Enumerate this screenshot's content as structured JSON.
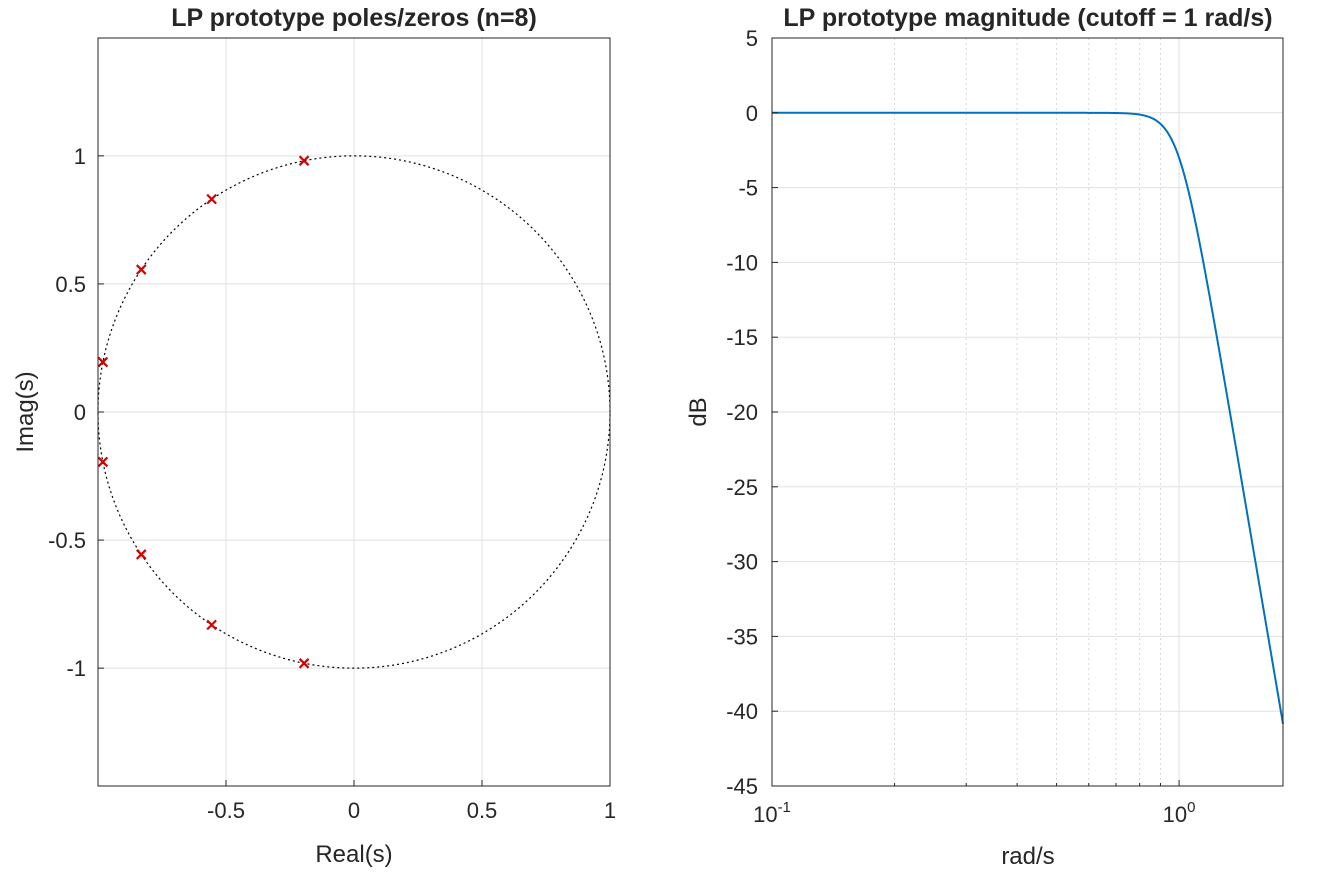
{
  "chart_data": [
    {
      "type": "scatter",
      "title": "LP prototype poles/zeros (n=8)",
      "xlabel": "Real(s)",
      "ylabel": "Imag(s)",
      "xlim": [
        -1,
        1
      ],
      "ylim": [
        -1.46,
        1.46
      ],
      "xticks": [
        -0.5,
        0,
        0.5,
        1
      ],
      "xtick_labels": [
        "-0.5",
        "0",
        "0.5",
        "1"
      ],
      "yticks": [
        -1,
        -0.5,
        0,
        0.5,
        1
      ],
      "ytick_labels": [
        "-1",
        "-0.5",
        "0",
        "0.5",
        "1"
      ],
      "grid": true,
      "unit_circle": true,
      "poles": [
        {
          "x": -0.195,
          "y": 0.981
        },
        {
          "x": -0.556,
          "y": 0.831
        },
        {
          "x": -0.831,
          "y": 0.556
        },
        {
          "x": -0.981,
          "y": 0.195
        },
        {
          "x": -0.981,
          "y": -0.195
        },
        {
          "x": -0.831,
          "y": -0.556
        },
        {
          "x": -0.556,
          "y": -0.831
        },
        {
          "x": -0.195,
          "y": -0.981
        }
      ],
      "marker": "x",
      "marker_color": "#d40000",
      "circle_color": "#000000"
    },
    {
      "type": "line",
      "title": "LP prototype magnitude (cutoff = 1 rad/s)",
      "xlabel": "rad/s",
      "ylabel": "dB",
      "xscale": "log",
      "xlim": [
        0.1,
        1.8
      ],
      "ylim": [
        -45,
        5
      ],
      "yticks": [
        5,
        0,
        -5,
        -10,
        -15,
        -20,
        -25,
        -30,
        -35,
        -40,
        -45
      ],
      "ytick_labels": [
        "5",
        "0",
        "-5",
        "-10",
        "-15",
        "-20",
        "-25",
        "-30",
        "-35",
        "-40",
        "-45"
      ],
      "xtick_labels": [
        {
          "base": "10",
          "exp": "-1",
          "value": 0.1
        },
        {
          "base": "10",
          "exp": "0",
          "value": 1
        }
      ],
      "grid": true,
      "series": [
        {
          "filter": "butterworth",
          "order": 8,
          "cutoff": 1,
          "color": "#0072bd"
        }
      ]
    }
  ]
}
